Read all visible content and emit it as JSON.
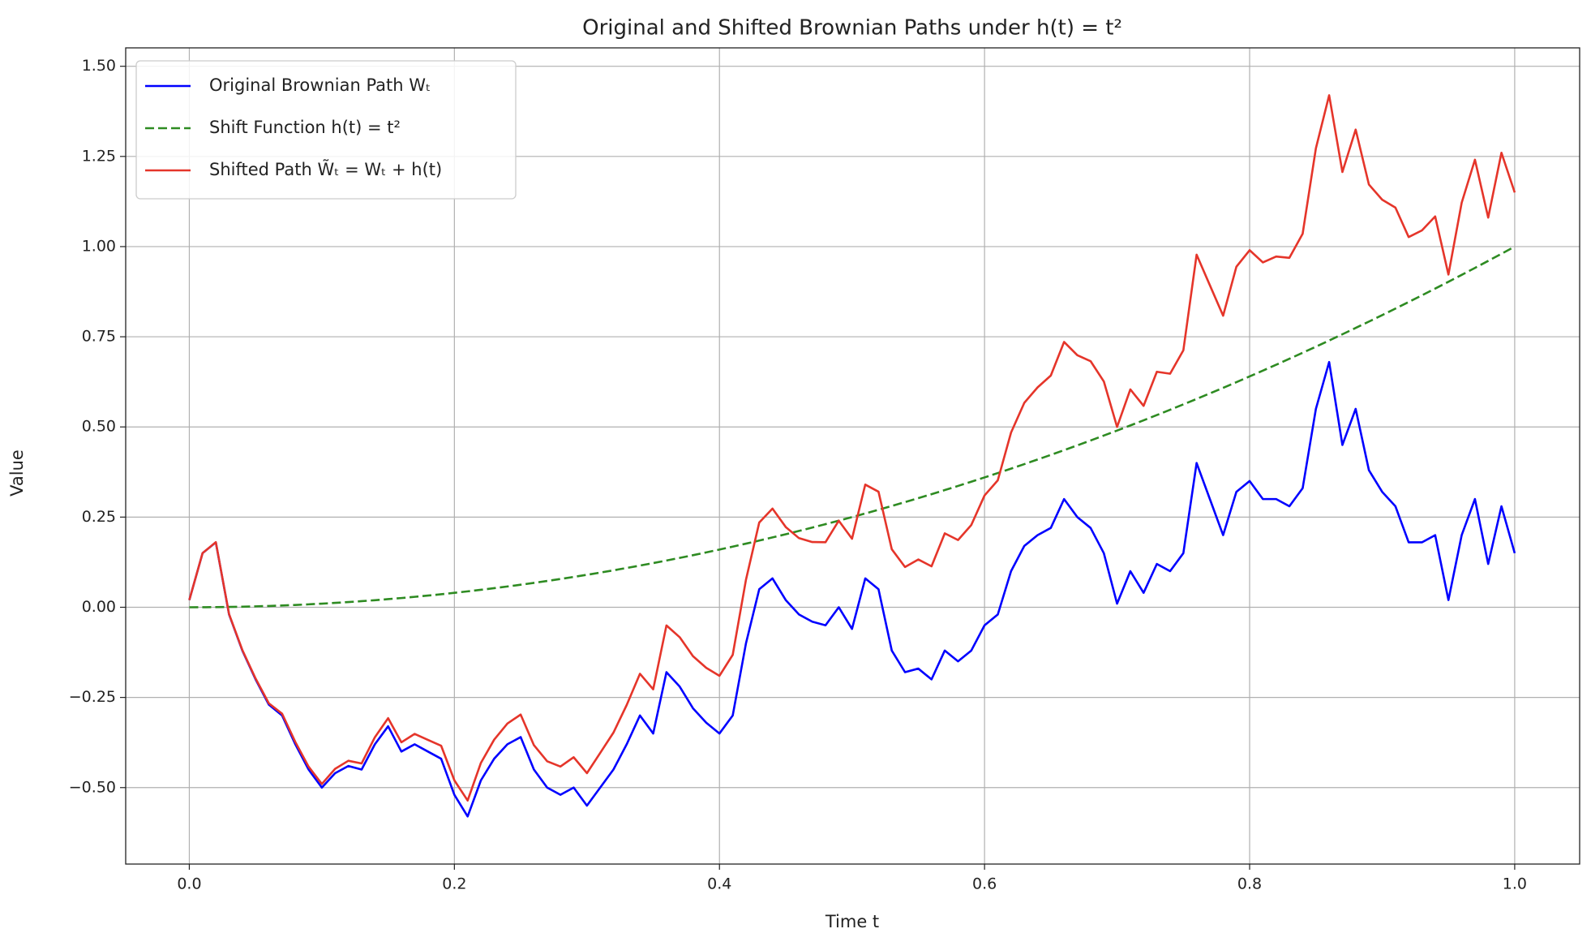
{
  "chart_data": {
    "type": "line",
    "title": "Original and Shifted Brownian Paths under h(t) = t²",
    "x_label": "Time t",
    "y_label": "Value",
    "xlim": [
      -0.048,
      1.049
    ],
    "ylim": [
      -0.712,
      1.551
    ],
    "xticks": [
      {
        "value": 0,
        "label": "0.0"
      },
      0.2,
      0.4,
      0.6,
      0.8,
      {
        "value": 1,
        "label": "1.0"
      }
    ],
    "yticks": [
      {
        "value": -0.5,
        "label": "−0.50"
      },
      {
        "value": -0.25,
        "label": "−0.25"
      },
      {
        "value": 0,
        "label": "0.00"
      },
      {
        "value": 0.25,
        "label": "0.25"
      },
      {
        "value": 0.5,
        "label": "0.50"
      },
      {
        "value": 0.75,
        "label": "0.75"
      },
      {
        "value": 1,
        "label": "1.00"
      },
      {
        "value": 1.25,
        "label": "1.25"
      },
      {
        "value": 1.5,
        "label": "1.50"
      }
    ],
    "grid": true,
    "legend": "upper left",
    "x": [
      0,
      0.01,
      0.02,
      0.03,
      0.04,
      0.05,
      0.06,
      0.07,
      0.08,
      0.09,
      0.1,
      0.11,
      0.12,
      0.13,
      0.14,
      0.15,
      0.16,
      0.17,
      0.18,
      0.19,
      0.2,
      0.21,
      0.22,
      0.23,
      0.24,
      0.25,
      0.26,
      0.27,
      0.28,
      0.29,
      0.3,
      0.31,
      0.32,
      0.33,
      0.34,
      0.35,
      0.36,
      0.37,
      0.38,
      0.39,
      0.4,
      0.41,
      0.42,
      0.43,
      0.44,
      0.45,
      0.46,
      0.47,
      0.48,
      0.49,
      0.5,
      0.51,
      0.52,
      0.53,
      0.54,
      0.55,
      0.56,
      0.57,
      0.58,
      0.59,
      0.6,
      0.61,
      0.62,
      0.63,
      0.64,
      0.65,
      0.66,
      0.67,
      0.68,
      0.69,
      0.7,
      0.71,
      0.72,
      0.73,
      0.74,
      0.75,
      0.76,
      0.77,
      0.78,
      0.79,
      0.8,
      0.81,
      0.82,
      0.83,
      0.84,
      0.85,
      0.86,
      0.87,
      0.88,
      0.89,
      0.9,
      0.91,
      0.92,
      0.93,
      0.94,
      0.95,
      0.96,
      0.97,
      0.98,
      0.99,
      1
    ],
    "series": [
      {
        "name": "Original Brownian Path Wₜ",
        "color": "#0000ff",
        "linestyle": "solid",
        "values": [
          0.02,
          0.15,
          0.18,
          -0.02,
          -0.12,
          -0.2,
          -0.27,
          -0.3,
          -0.38,
          -0.45,
          -0.5,
          -0.46,
          -0.44,
          -0.45,
          -0.38,
          -0.33,
          -0.4,
          -0.38,
          -0.4,
          -0.42,
          -0.52,
          -0.58,
          -0.48,
          -0.42,
          -0.38,
          -0.36,
          -0.45,
          -0.5,
          -0.52,
          -0.5,
          -0.55,
          -0.5,
          -0.45,
          -0.38,
          -0.3,
          -0.35,
          -0.18,
          -0.22,
          -0.28,
          -0.32,
          -0.35,
          -0.3,
          -0.1,
          0.05,
          0.08,
          0.02,
          -0.02,
          -0.04,
          -0.05,
          0,
          -0.06,
          0.08,
          0.05,
          -0.12,
          -0.18,
          -0.17,
          -0.2,
          -0.12,
          -0.15,
          -0.12,
          -0.05,
          -0.02,
          0.1,
          0.17,
          0.2,
          0.22,
          0.3,
          0.25,
          0.22,
          0.15,
          0.01,
          0.1,
          0.04,
          0.12,
          0.1,
          0.15,
          0.4,
          0.3,
          0.2,
          0.32,
          0.35,
          0.3,
          0.3,
          0.28,
          0.33,
          0.55,
          0.68,
          0.45,
          0.55,
          0.38,
          0.32,
          0.28,
          0.18,
          0.18,
          0.2,
          0.02,
          0.2,
          0.3,
          0.12,
          0.28,
          0.15
        ]
      },
      {
        "name": "Shift Function h(t) = t²",
        "color": "#2e8b22",
        "linestyle": "dashed",
        "values": [
          0,
          0.0001,
          0.0004,
          0.0009,
          0.0016,
          0.0025,
          0.0036,
          0.0049,
          0.0064,
          0.0081,
          0.01,
          0.0121,
          0.0144,
          0.0169,
          0.0196,
          0.0225,
          0.0256,
          0.0289,
          0.0324,
          0.0361,
          0.04,
          0.0441,
          0.0484,
          0.0529,
          0.0576,
          0.0625,
          0.0676,
          0.0729,
          0.0784,
          0.0841,
          0.09,
          0.0961,
          0.1024,
          0.1089,
          0.1156,
          0.1225,
          0.1296,
          0.1369,
          0.1444,
          0.1521,
          0.16,
          0.1681,
          0.1764,
          0.1849,
          0.1936,
          0.2025,
          0.2116,
          0.2209,
          0.2304,
          0.2401,
          0.25,
          0.2601,
          0.2704,
          0.2809,
          0.2916,
          0.3025,
          0.3136,
          0.3249,
          0.3364,
          0.3481,
          0.36,
          0.3721,
          0.3844,
          0.3969,
          0.4096,
          0.4225,
          0.4356,
          0.4489,
          0.4624,
          0.4761,
          0.49,
          0.5041,
          0.5184,
          0.5329,
          0.5476,
          0.5625,
          0.5776,
          0.5929,
          0.6084,
          0.6241,
          0.64,
          0.6561,
          0.6724,
          0.6889,
          0.7056,
          0.7225,
          0.7396,
          0.7569,
          0.7744,
          0.7921,
          0.81,
          0.8281,
          0.8464,
          0.8649,
          0.8836,
          0.9025,
          0.9216,
          0.9409,
          0.9604,
          0.9801,
          1
        ]
      },
      {
        "name": "Shifted Path W̃ₜ = Wₜ + h(t)",
        "color": "#e5352a",
        "linestyle": "solid",
        "values": [
          0.02,
          0.1501,
          0.1804,
          -0.0191,
          -0.1184,
          -0.1975,
          -0.2664,
          -0.2951,
          -0.3736,
          -0.4419,
          -0.49,
          -0.4479,
          -0.4256,
          -0.4331,
          -0.3604,
          -0.3075,
          -0.3744,
          -0.3511,
          -0.3676,
          -0.3839,
          -0.48,
          -0.5359,
          -0.4316,
          -0.3671,
          -0.3224,
          -0.2975,
          -0.3824,
          -0.4271,
          -0.4416,
          -0.4159,
          -0.46,
          -0.4039,
          -0.3476,
          -0.2711,
          -0.1844,
          -0.2275,
          -0.0504,
          -0.0831,
          -0.1356,
          -0.1679,
          -0.19,
          -0.1319,
          0.0764,
          0.2349,
          0.2736,
          0.2225,
          0.1916,
          0.1809,
          0.1804,
          0.2401,
          0.19,
          0.3401,
          0.3204,
          0.1609,
          0.1116,
          0.1325,
          0.1136,
          0.2049,
          0.1864,
          0.2281,
          0.31,
          0.3521,
          0.4844,
          0.5669,
          0.6096,
          0.6425,
          0.7356,
          0.6989,
          0.6824,
          0.6261,
          0.5,
          0.6041,
          0.5584,
          0.6529,
          0.6476,
          0.7125,
          0.9776,
          0.8929,
          0.8084,
          0.9441,
          0.99,
          0.9561,
          0.9724,
          0.9689,
          1.0356,
          1.2725,
          1.4196,
          1.2069,
          1.3244,
          1.1721,
          1.13,
          1.1081,
          1.0264,
          1.0449,
          1.0836,
          0.9225,
          1.1216,
          1.2409,
          1.0804,
          1.2601,
          1.15
        ]
      }
    ]
  }
}
